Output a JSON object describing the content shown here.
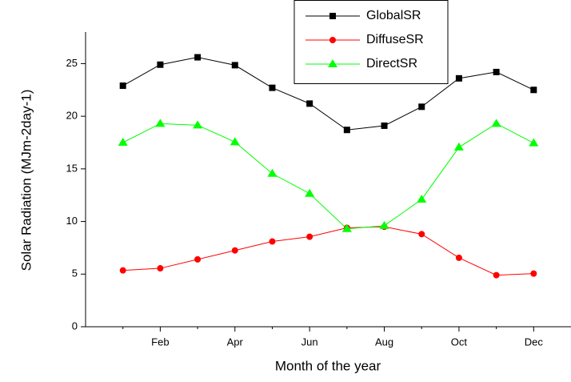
{
  "chart_data": {
    "type": "line",
    "xlabel": "Month of the year",
    "ylabel": "Solar Radiation (MJm-2day-1)",
    "categories": [
      null,
      "Feb",
      null,
      "Apr",
      null,
      "Jun",
      null,
      "Aug",
      null,
      "Oct",
      null,
      "Dec"
    ],
    "series": [
      {
        "name": "GlobalSR",
        "color": "#000000",
        "marker": "square",
        "values": [
          22.9,
          24.9,
          25.6,
          24.85,
          22.7,
          21.2,
          18.7,
          19.1,
          20.9,
          23.6,
          24.2,
          22.5
        ]
      },
      {
        "name": "DiffuseSR",
        "color": "#ff0000",
        "marker": "circle",
        "values": [
          5.35,
          5.55,
          6.4,
          7.25,
          8.1,
          8.55,
          9.4,
          9.5,
          8.8,
          6.55,
          4.9,
          5.05
        ]
      },
      {
        "name": "DirectSR",
        "color": "#00ff00",
        "marker": "triangle",
        "values": [
          17.5,
          19.3,
          19.15,
          17.55,
          14.55,
          12.65,
          9.3,
          9.6,
          12.1,
          17.05,
          19.3,
          17.45
        ]
      }
    ],
    "ylim": [
      0,
      28
    ],
    "yticks": [
      0,
      5,
      10,
      15,
      20,
      25
    ],
    "grid": false,
    "legend": "top"
  }
}
